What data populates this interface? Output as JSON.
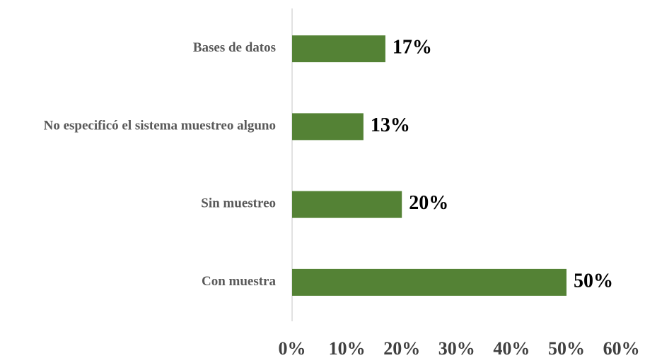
{
  "chart_data": {
    "type": "bar",
    "orientation": "horizontal",
    "categories": [
      "Bases de datos",
      "No especificó el sistema muestreo alguno",
      "Sin muestreo",
      "Con muestra"
    ],
    "values": [
      17,
      13,
      20,
      50
    ],
    "value_labels": [
      "17%",
      "13%",
      "20%",
      "50%"
    ],
    "color": "#548235",
    "xlim": [
      0,
      60
    ],
    "xticks": [
      {
        "value": 0,
        "label": "0%"
      },
      {
        "value": 10,
        "label": "10%"
      },
      {
        "value": 20,
        "label": "20%"
      },
      {
        "value": 30,
        "label": "30%"
      },
      {
        "value": 40,
        "label": "40%"
      },
      {
        "value": 50,
        "label": "50%"
      },
      {
        "value": 60,
        "label": "60%"
      }
    ],
    "grid": false
  }
}
